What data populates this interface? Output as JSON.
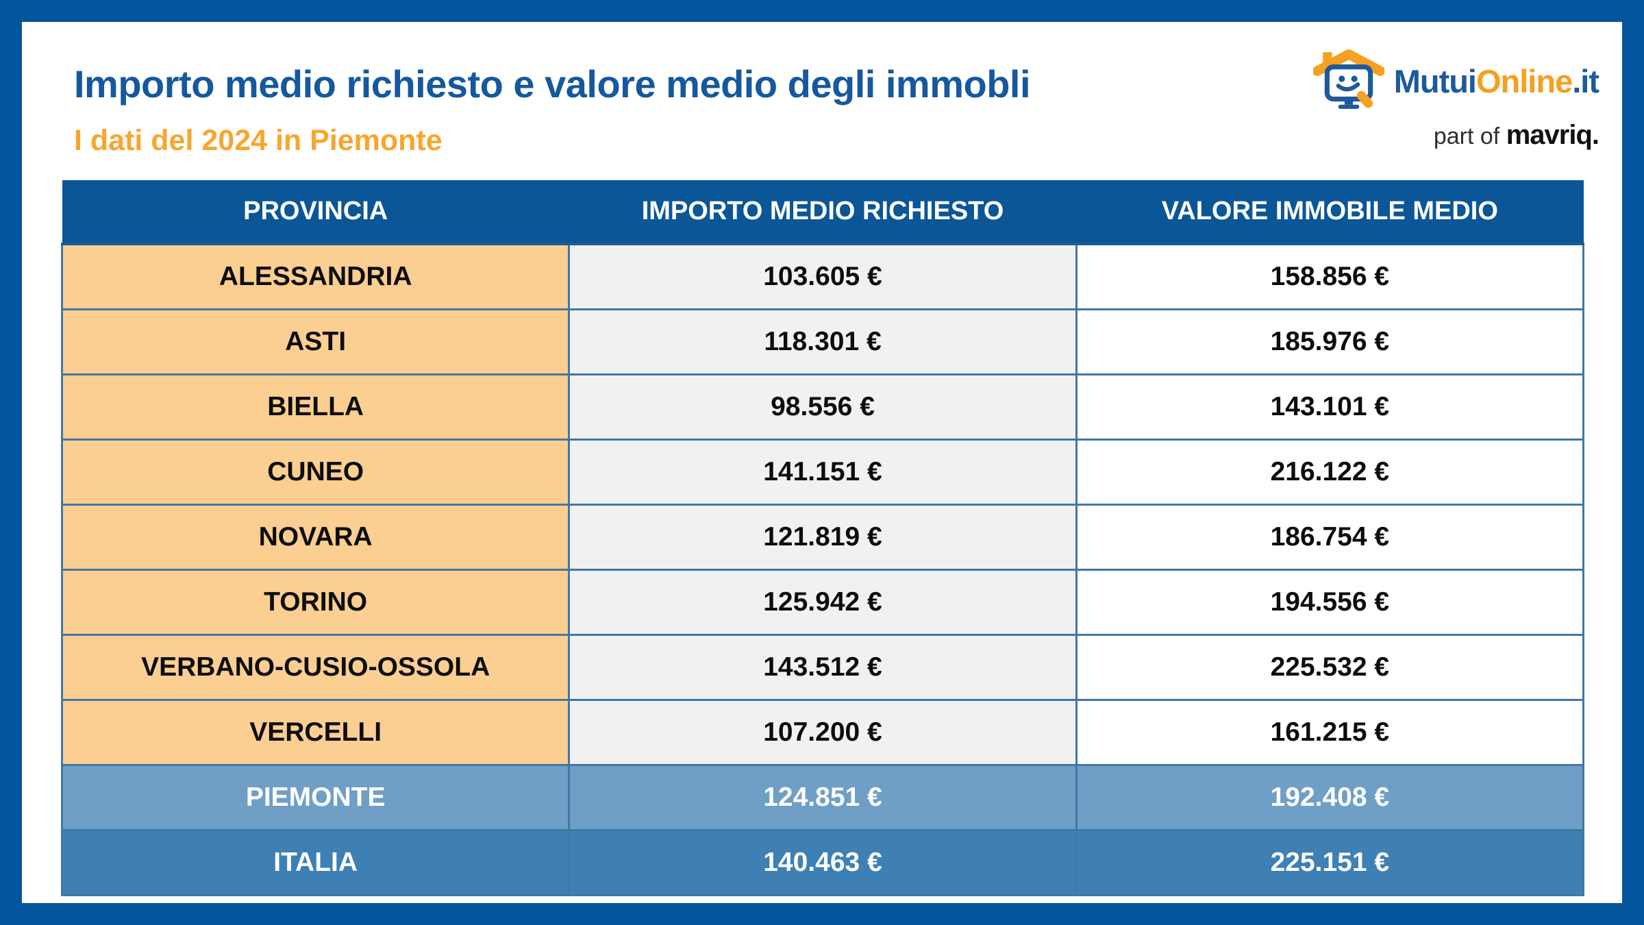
{
  "page": {
    "title": "Importo medio richiesto e valore medio degli immobli",
    "subtitle": "I dati del 2024 in Piemonte"
  },
  "logo": {
    "brand_part1": "Mutui",
    "brand_part2": "Online",
    "brand_part3": ".it",
    "tagline_prefix": "part of ",
    "tagline_brand": "mavriq."
  },
  "colors": {
    "frame_blue": "#02559b",
    "header_blue": "#0b5697",
    "title_blue": "#15589e",
    "subtitle_orange": "#f7a62e",
    "province_orange": "#fbce92",
    "value_gray": "#f1f1f2",
    "region_row_blue": "#6f9fc7",
    "country_row_blue": "#3e80b4",
    "cell_border_blue": "#4177a5",
    "logo_orange": "#f5a01f",
    "logo_blue": "#1c5a9c"
  },
  "table": {
    "headers": [
      "PROVINCIA",
      "IMPORTO MEDIO RICHIESTO",
      "VALORE IMMOBILE MEDIO"
    ],
    "rows": [
      {
        "kind": "province",
        "label": "ALESSANDRIA",
        "importo": "103.605 €",
        "valore": "158.856 €"
      },
      {
        "kind": "province",
        "label": "ASTI",
        "importo": "118.301 €",
        "valore": "185.976 €"
      },
      {
        "kind": "province",
        "label": "BIELLA",
        "importo": "98.556 €",
        "valore": "143.101 €"
      },
      {
        "kind": "province",
        "label": "CUNEO",
        "importo": "141.151 €",
        "valore": "216.122 €"
      },
      {
        "kind": "province",
        "label": "NOVARA",
        "importo": "121.819 €",
        "valore": "186.754 €"
      },
      {
        "kind": "province",
        "label": "TORINO",
        "importo": "125.942 €",
        "valore": "194.556 €"
      },
      {
        "kind": "province",
        "label": "VERBANO-CUSIO-OSSOLA",
        "importo": "143.512 €",
        "valore": "225.532 €"
      },
      {
        "kind": "province",
        "label": "VERCELLI",
        "importo": "107.200 €",
        "valore": "161.215 €"
      },
      {
        "kind": "region",
        "label": "PIEMONTE",
        "importo": "124.851 €",
        "valore": "192.408 €"
      },
      {
        "kind": "country",
        "label": "ITALIA",
        "importo": "140.463 €",
        "valore": "225.151 €"
      }
    ]
  },
  "chart_data": {
    "type": "table",
    "title": "Importo medio richiesto e valore medio degli immobli - I dati del 2024 in Piemonte",
    "columns": [
      "PROVINCIA",
      "IMPORTO MEDIO RICHIESTO",
      "VALORE IMMOBILE MEDIO"
    ],
    "rows": [
      {
        "provincia": "ALESSANDRIA",
        "importo_medio_richiesto_eur": 103605,
        "valore_immobile_medio_eur": 158856
      },
      {
        "provincia": "ASTI",
        "importo_medio_richiesto_eur": 118301,
        "valore_immobile_medio_eur": 185976
      },
      {
        "provincia": "BIELLA",
        "importo_medio_richiesto_eur": 98556,
        "valore_immobile_medio_eur": 143101
      },
      {
        "provincia": "CUNEO",
        "importo_medio_richiesto_eur": 141151,
        "valore_immobile_medio_eur": 216122
      },
      {
        "provincia": "NOVARA",
        "importo_medio_richiesto_eur": 121819,
        "valore_immobile_medio_eur": 186754
      },
      {
        "provincia": "TORINO",
        "importo_medio_richiesto_eur": 125942,
        "valore_immobile_medio_eur": 194556
      },
      {
        "provincia": "VERBANO-CUSIO-OSSOLA",
        "importo_medio_richiesto_eur": 143512,
        "valore_immobile_medio_eur": 225532
      },
      {
        "provincia": "VERCELLI",
        "importo_medio_richiesto_eur": 107200,
        "valore_immobile_medio_eur": 161215
      },
      {
        "provincia": "PIEMONTE",
        "importo_medio_richiesto_eur": 124851,
        "valore_immobile_medio_eur": 192408
      },
      {
        "provincia": "ITALIA",
        "importo_medio_richiesto_eur": 140463,
        "valore_immobile_medio_eur": 225151
      }
    ]
  }
}
